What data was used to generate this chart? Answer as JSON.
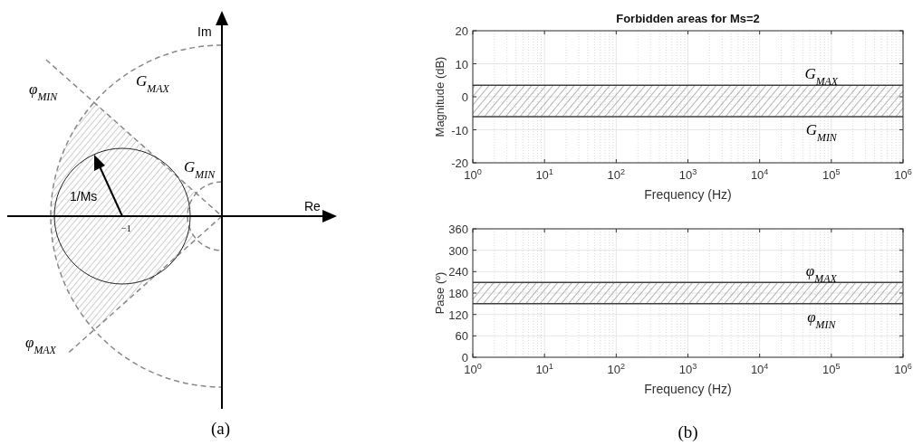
{
  "chart_data": [
    {
      "type": "other",
      "annotations": [
        "Im",
        "Re",
        "G$_{MAX}$",
        "φ$_{MIN}$",
        "G$_{MIN}$",
        "1/Ms",
        "−1",
        "φ$_{MAX}$",
        "(a)"
      ]
    },
    {
      "type": "line",
      "title": "Forbidden areas for Ms=2",
      "xlabel": "Frequency (Hz)",
      "ylabel": "Magnitude (dB)",
      "log": "x",
      "grid": true,
      "xlim": [
        1,
        1000000
      ],
      "xticks": [
        {
          "value": 1,
          "label": "10$^{0}$"
        },
        {
          "value": 10,
          "label": "10$^{1}$"
        },
        {
          "value": 100,
          "label": "10$^{2}$"
        },
        {
          "value": 1000,
          "label": "10$^{3}$"
        },
        {
          "value": 10000,
          "label": "10$^{4}$"
        },
        {
          "value": 100000,
          "label": "10$^{5}$"
        },
        {
          "value": 1000000,
          "label": "10$^{6}$"
        }
      ],
      "ylim": [
        -20,
        20
      ],
      "yticks": [
        -20,
        -10,
        0,
        10,
        20
      ],
      "bands": [
        {
          "axis": "y",
          "from": -6,
          "to": 3.5,
          "color": "#a0a0a0"
        }
      ],
      "ref_lines": [
        {
          "axis": "y",
          "value": 3.5,
          "label": "G$_{MAX}$",
          "color": "#404040"
        },
        {
          "axis": "y",
          "value": -6,
          "label": "G$_{MIN}$",
          "color": "#404040"
        }
      ]
    },
    {
      "type": "line",
      "xlabel": "Frequency (Hz)",
      "ylabel": "Pase (º)",
      "log": "x",
      "grid": true,
      "xlim": [
        1,
        1000000
      ],
      "xticks": [
        {
          "value": 1,
          "label": "10$^{0}$"
        },
        {
          "value": 10,
          "label": "10$^{1}$"
        },
        {
          "value": 100,
          "label": "10$^{2}$"
        },
        {
          "value": 1000,
          "label": "10$^{3}$"
        },
        {
          "value": 10000,
          "label": "10$^{4}$"
        },
        {
          "value": 100000,
          "label": "10$^{5}$"
        },
        {
          "value": 1000000,
          "label": "10$^{6}$"
        }
      ],
      "ylim": [
        0,
        360
      ],
      "yticks": [
        0,
        60,
        120,
        180,
        240,
        300,
        360
      ],
      "bands": [
        {
          "axis": "y",
          "from": 150,
          "to": 210,
          "color": "#a0a0a0"
        }
      ],
      "ref_lines": [
        {
          "axis": "y",
          "value": 210,
          "label": "φ$_{MAX}$",
          "color": "#404040"
        },
        {
          "axis": "y",
          "value": 150,
          "label": "φ$_{MIN}$",
          "color": "#404040"
        }
      ],
      "annotations": [
        "(b)"
      ]
    }
  ]
}
